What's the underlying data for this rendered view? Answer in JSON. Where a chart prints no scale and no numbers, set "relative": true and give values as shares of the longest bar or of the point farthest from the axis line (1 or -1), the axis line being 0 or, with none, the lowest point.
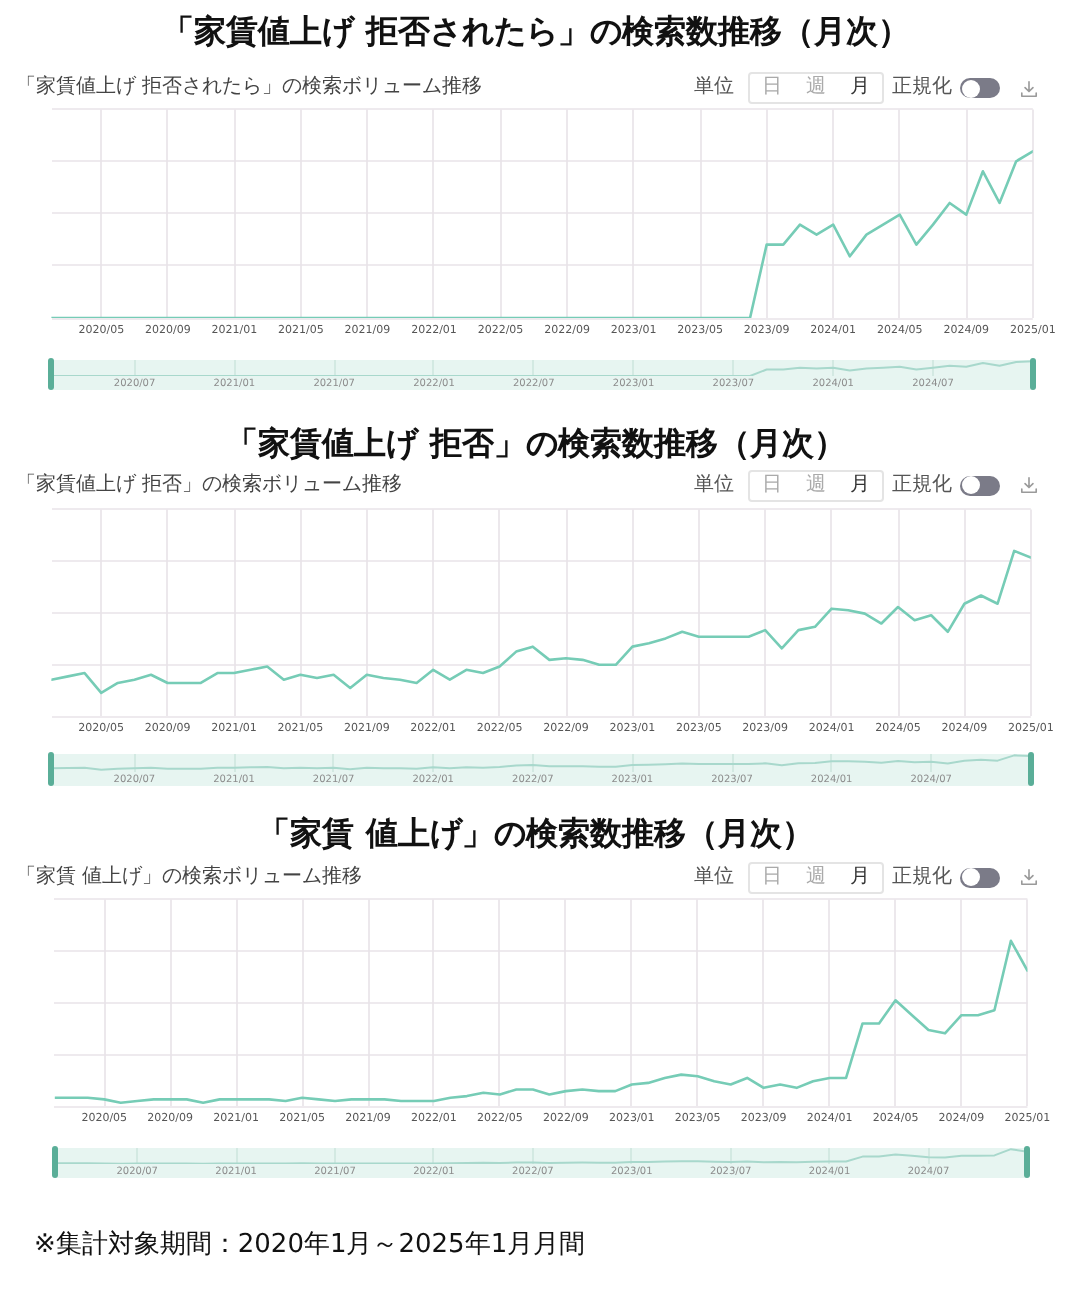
{
  "chart_data": [
    {
      "type": "line",
      "title": "「家賃値上げ 拒否されたら」の検索数推移（月次）",
      "subtitle": "「家賃値上げ 拒否されたら」の検索ボリューム推移",
      "annotations": [
        "単位",
        "日",
        "週",
        "月",
        "正規化"
      ],
      "x": [
        "2020-02",
        "2020-03",
        "2020-04",
        "2020-05",
        "2020-06",
        "2020-07",
        "2020-08",
        "2020-09",
        "2020-10",
        "2020-11",
        "2020-12",
        "2021-01",
        "2021-02",
        "2021-03",
        "2021-04",
        "2021-05",
        "2021-06",
        "2021-07",
        "2021-08",
        "2021-09",
        "2021-10",
        "2021-11",
        "2021-12",
        "2022-01",
        "2022-02",
        "2022-03",
        "2022-04",
        "2022-05",
        "2022-06",
        "2022-07",
        "2022-08",
        "2022-09",
        "2022-10",
        "2022-11",
        "2022-12",
        "2023-01",
        "2023-02",
        "2023-03",
        "2023-04",
        "2023-05",
        "2023-06",
        "2023-07",
        "2023-08",
        "2023-09",
        "2023-10",
        "2023-11",
        "2023-12",
        "2024-01",
        "2024-02",
        "2024-03",
        "2024-04",
        "2024-05",
        "2024-06",
        "2024-07",
        "2024-08",
        "2024-09",
        "2024-10",
        "2024-11",
        "2024-12",
        "2025-01"
      ],
      "values": [
        0,
        0,
        0,
        0,
        0,
        0,
        0,
        0,
        0,
        0,
        0,
        0,
        0,
        0,
        0,
        0,
        0,
        0,
        0,
        0,
        0,
        0,
        0,
        0,
        0,
        0,
        0,
        0,
        0,
        0,
        0,
        0,
        0,
        0,
        0,
        0,
        0,
        0,
        0,
        0,
        0,
        0,
        0,
        0.44,
        0.44,
        0.56,
        0.5,
        0.56,
        0.37,
        0.5,
        0.56,
        0.62,
        0.44,
        0.56,
        0.69,
        0.62,
        0.88,
        0.69,
        0.94,
        1.0
      ],
      "color": "#76ccb6",
      "marker": "none",
      "grid": true,
      "relative": true,
      "tick_labels": "x",
      "xlim": [
        "2020-02",
        "2025-01"
      ],
      "xticks": [
        {
          "value": "2020-05",
          "label": "2020/05"
        },
        {
          "value": "2020-09",
          "label": "2020/09"
        },
        {
          "value": "2021-01",
          "label": "2021/01"
        },
        {
          "value": "2021-05",
          "label": "2021/05"
        },
        {
          "value": "2021-09",
          "label": "2021/09"
        },
        {
          "value": "2022-01",
          "label": "2022/01"
        },
        {
          "value": "2022-05",
          "label": "2022/05"
        },
        {
          "value": "2022-09",
          "label": "2022/09"
        },
        {
          "value": "2023-01",
          "label": "2023/01"
        },
        {
          "value": "2023-05",
          "label": "2023/05"
        },
        {
          "value": "2023-09",
          "label": "2023/09"
        },
        {
          "value": "2024-01",
          "label": "2024/01"
        },
        {
          "value": "2024-05",
          "label": "2024/05"
        },
        {
          "value": "2024-09",
          "label": "2024/09"
        },
        {
          "value": "2025-01",
          "label": "2025/01"
        }
      ]
    },
    {
      "type": "line",
      "x": [
        "2020-02",
        "2020-03",
        "2020-04",
        "2020-05",
        "2020-06",
        "2020-07",
        "2020-08",
        "2020-09",
        "2020-10",
        "2020-11",
        "2020-12",
        "2021-01",
        "2021-02",
        "2021-03",
        "2021-04",
        "2021-05",
        "2021-06",
        "2021-07",
        "2021-08",
        "2021-09",
        "2021-10",
        "2021-11",
        "2021-12",
        "2022-01",
        "2022-02",
        "2022-03",
        "2022-04",
        "2022-05",
        "2022-06",
        "2022-07",
        "2022-08",
        "2022-09",
        "2022-10",
        "2022-11",
        "2022-12",
        "2023-01",
        "2023-02",
        "2023-03",
        "2023-04",
        "2023-05",
        "2023-06",
        "2023-07",
        "2023-08",
        "2023-09",
        "2023-10",
        "2023-11",
        "2023-12",
        "2024-01",
        "2024-02",
        "2024-03",
        "2024-04",
        "2024-05",
        "2024-06",
        "2024-07",
        "2024-08",
        "2024-09",
        "2024-10",
        "2024-11",
        "2024-12",
        "2025-01"
      ],
      "values": [
        0,
        0,
        0,
        0,
        0,
        0,
        0,
        0,
        0,
        0,
        0,
        0,
        0,
        0,
        0,
        0,
        0,
        0,
        0,
        0,
        0,
        0,
        0,
        0,
        0,
        0,
        0,
        0,
        0,
        0,
        0,
        0,
        0,
        0,
        0,
        0,
        0,
        0,
        0,
        0,
        0,
        0,
        0,
        0.44,
        0.44,
        0.56,
        0.5,
        0.56,
        0.37,
        0.5,
        0.56,
        0.62,
        0.44,
        0.56,
        0.69,
        0.62,
        0.88,
        0.69,
        0.94,
        1.0
      ],
      "color": "#a8d8cc",
      "marker": "none",
      "grid": "x",
      "relative": true,
      "tick_labels": "x",
      "xlim": [
        "2020-02",
        "2025-01"
      ],
      "xticks": [
        {
          "value": "2020-07",
          "label": "2020/07"
        },
        {
          "value": "2021-01",
          "label": "2021/01"
        },
        {
          "value": "2021-07",
          "label": "2021/07"
        },
        {
          "value": "2022-01",
          "label": "2022/01"
        },
        {
          "value": "2022-07",
          "label": "2022/07"
        },
        {
          "value": "2023-01",
          "label": "2023/01"
        },
        {
          "value": "2023-07",
          "label": "2023/07"
        },
        {
          "value": "2024-01",
          "label": "2024/01"
        },
        {
          "value": "2024-07",
          "label": "2024/07"
        }
      ],
      "bands": [
        {
          "axis": "x",
          "from": "2020-02",
          "to": "2025-01",
          "color": "#e7f5f1"
        }
      ]
    },
    {
      "type": "line",
      "title": "「家賃値上げ 拒否」の検索数推移（月次）",
      "subtitle": "「家賃値上げ 拒否」の検索ボリューム推移",
      "annotations": [
        "単位",
        "日",
        "週",
        "月",
        "正規化"
      ],
      "x": [
        "2020-02",
        "2020-03",
        "2020-04",
        "2020-05",
        "2020-06",
        "2020-07",
        "2020-08",
        "2020-09",
        "2020-10",
        "2020-11",
        "2020-12",
        "2021-01",
        "2021-02",
        "2021-03",
        "2021-04",
        "2021-05",
        "2021-06",
        "2021-07",
        "2021-08",
        "2021-09",
        "2021-10",
        "2021-11",
        "2021-12",
        "2022-01",
        "2022-02",
        "2022-03",
        "2022-04",
        "2022-05",
        "2022-06",
        "2022-07",
        "2022-08",
        "2022-09",
        "2022-10",
        "2022-11",
        "2022-12",
        "2023-01",
        "2023-02",
        "2023-03",
        "2023-04",
        "2023-05",
        "2023-06",
        "2023-07",
        "2023-08",
        "2023-09",
        "2023-10",
        "2023-11",
        "2023-12",
        "2024-01",
        "2024-02",
        "2024-03",
        "2024-04",
        "2024-05",
        "2024-06",
        "2024-07",
        "2024-08",
        "2024-09",
        "2024-10",
        "2024-11",
        "2024-12",
        "2025-01"
      ],
      "values": [
        0.22,
        0.24,
        0.26,
        0.14,
        0.2,
        0.22,
        0.25,
        0.2,
        0.2,
        0.2,
        0.26,
        0.26,
        0.28,
        0.3,
        0.22,
        0.25,
        0.23,
        0.25,
        0.17,
        0.25,
        0.23,
        0.22,
        0.2,
        0.28,
        0.22,
        0.28,
        0.26,
        0.3,
        0.39,
        0.42,
        0.34,
        0.35,
        0.34,
        0.31,
        0.31,
        0.42,
        0.44,
        0.47,
        0.51,
        0.48,
        0.48,
        0.48,
        0.48,
        0.52,
        0.41,
        0.52,
        0.54,
        0.65,
        0.64,
        0.62,
        0.56,
        0.66,
        0.58,
        0.61,
        0.51,
        0.68,
        0.73,
        0.68,
        1.0,
        0.96
      ],
      "color": "#76ccb6",
      "marker": "none",
      "grid": true,
      "relative": true,
      "tick_labels": "x",
      "xlim": [
        "2020-02",
        "2025-01"
      ],
      "xticks": [
        {
          "value": "2020-05",
          "label": "2020/05"
        },
        {
          "value": "2020-09",
          "label": "2020/09"
        },
        {
          "value": "2021-01",
          "label": "2021/01"
        },
        {
          "value": "2021-05",
          "label": "2021/05"
        },
        {
          "value": "2021-09",
          "label": "2021/09"
        },
        {
          "value": "2022-01",
          "label": "2022/01"
        },
        {
          "value": "2022-05",
          "label": "2022/05"
        },
        {
          "value": "2022-09",
          "label": "2022/09"
        },
        {
          "value": "2023-01",
          "label": "2023/01"
        },
        {
          "value": "2023-05",
          "label": "2023/05"
        },
        {
          "value": "2023-09",
          "label": "2023/09"
        },
        {
          "value": "2024-01",
          "label": "2024/01"
        },
        {
          "value": "2024-05",
          "label": "2024/05"
        },
        {
          "value": "2024-09",
          "label": "2024/09"
        },
        {
          "value": "2025-01",
          "label": "2025/01"
        }
      ]
    },
    {
      "type": "line",
      "x": [
        "2020-02",
        "2020-03",
        "2020-04",
        "2020-05",
        "2020-06",
        "2020-07",
        "2020-08",
        "2020-09",
        "2020-10",
        "2020-11",
        "2020-12",
        "2021-01",
        "2021-02",
        "2021-03",
        "2021-04",
        "2021-05",
        "2021-06",
        "2021-07",
        "2021-08",
        "2021-09",
        "2021-10",
        "2021-11",
        "2021-12",
        "2022-01",
        "2022-02",
        "2022-03",
        "2022-04",
        "2022-05",
        "2022-06",
        "2022-07",
        "2022-08",
        "2022-09",
        "2022-10",
        "2022-11",
        "2022-12",
        "2023-01",
        "2023-02",
        "2023-03",
        "2023-04",
        "2023-05",
        "2023-06",
        "2023-07",
        "2023-08",
        "2023-09",
        "2023-10",
        "2023-11",
        "2023-12",
        "2024-01",
        "2024-02",
        "2024-03",
        "2024-04",
        "2024-05",
        "2024-06",
        "2024-07",
        "2024-08",
        "2024-09",
        "2024-10",
        "2024-11",
        "2024-12",
        "2025-01"
      ],
      "values": [
        0.22,
        0.24,
        0.26,
        0.14,
        0.2,
        0.22,
        0.25,
        0.2,
        0.2,
        0.2,
        0.26,
        0.26,
        0.28,
        0.3,
        0.22,
        0.25,
        0.23,
        0.25,
        0.17,
        0.25,
        0.23,
        0.22,
        0.2,
        0.28,
        0.22,
        0.28,
        0.26,
        0.3,
        0.39,
        0.42,
        0.34,
        0.35,
        0.34,
        0.31,
        0.31,
        0.42,
        0.44,
        0.47,
        0.51,
        0.48,
        0.48,
        0.48,
        0.48,
        0.52,
        0.41,
        0.52,
        0.54,
        0.65,
        0.64,
        0.62,
        0.56,
        0.66,
        0.58,
        0.61,
        0.51,
        0.68,
        0.73,
        0.68,
        1.0,
        0.96
      ],
      "color": "#a8d8cc",
      "marker": "none",
      "grid": "x",
      "relative": true,
      "tick_labels": "x",
      "xlim": [
        "2020-02",
        "2025-01"
      ],
      "xticks": [
        {
          "value": "2020-07",
          "label": "2020/07"
        },
        {
          "value": "2021-01",
          "label": "2021/01"
        },
        {
          "value": "2021-07",
          "label": "2021/07"
        },
        {
          "value": "2022-01",
          "label": "2022/01"
        },
        {
          "value": "2022-07",
          "label": "2022/07"
        },
        {
          "value": "2023-01",
          "label": "2023/01"
        },
        {
          "value": "2023-07",
          "label": "2023/07"
        },
        {
          "value": "2024-01",
          "label": "2024/01"
        },
        {
          "value": "2024-07",
          "label": "2024/07"
        }
      ],
      "bands": [
        {
          "axis": "x",
          "from": "2020-02",
          "to": "2025-01",
          "color": "#e7f5f1"
        }
      ]
    },
    {
      "type": "line",
      "title": "「家賃 値上げ」の検索数推移（月次）",
      "subtitle": "「家賃 値上げ」の検索ボリューム推移",
      "annotations": [
        "単位",
        "日",
        "週",
        "月",
        "正規化"
      ],
      "x": [
        "2020-02",
        "2020-03",
        "2020-04",
        "2020-05",
        "2020-06",
        "2020-07",
        "2020-08",
        "2020-09",
        "2020-10",
        "2020-11",
        "2020-12",
        "2021-01",
        "2021-02",
        "2021-03",
        "2021-04",
        "2021-05",
        "2021-06",
        "2021-07",
        "2021-08",
        "2021-09",
        "2021-10",
        "2021-11",
        "2021-12",
        "2022-01",
        "2022-02",
        "2022-03",
        "2022-04",
        "2022-05",
        "2022-06",
        "2022-07",
        "2022-08",
        "2022-09",
        "2022-10",
        "2022-11",
        "2022-12",
        "2023-01",
        "2023-02",
        "2023-03",
        "2023-04",
        "2023-05",
        "2023-06",
        "2023-07",
        "2023-08",
        "2023-09",
        "2023-10",
        "2023-11",
        "2023-12",
        "2024-01",
        "2024-02",
        "2024-03",
        "2024-04",
        "2024-05",
        "2024-06",
        "2024-07",
        "2024-08",
        "2024-09",
        "2024-10",
        "2024-11",
        "2024-12",
        "2025-01"
      ],
      "values": [
        0.05,
        0.05,
        0.05,
        0.04,
        0.02,
        0.03,
        0.04,
        0.04,
        0.04,
        0.02,
        0.04,
        0.04,
        0.04,
        0.04,
        0.03,
        0.05,
        0.04,
        0.03,
        0.04,
        0.04,
        0.04,
        0.03,
        0.03,
        0.03,
        0.05,
        0.06,
        0.08,
        0.07,
        0.1,
        0.1,
        0.07,
        0.09,
        0.1,
        0.09,
        0.09,
        0.13,
        0.14,
        0.17,
        0.19,
        0.18,
        0.15,
        0.13,
        0.17,
        0.11,
        0.13,
        0.11,
        0.15,
        0.17,
        0.17,
        0.5,
        0.5,
        0.64,
        0.55,
        0.46,
        0.44,
        0.55,
        0.55,
        0.58,
        1.0,
        0.82
      ],
      "color": "#76ccb6",
      "marker": "none",
      "grid": true,
      "relative": true,
      "tick_labels": "x",
      "xlim": [
        "2020-02",
        "2025-01"
      ],
      "xticks": [
        {
          "value": "2020-05",
          "label": "2020/05"
        },
        {
          "value": "2020-09",
          "label": "2020/09"
        },
        {
          "value": "2021-01",
          "label": "2021/01"
        },
        {
          "value": "2021-05",
          "label": "2021/05"
        },
        {
          "value": "2021-09",
          "label": "2021/09"
        },
        {
          "value": "2022-01",
          "label": "2022/01"
        },
        {
          "value": "2022-05",
          "label": "2022/05"
        },
        {
          "value": "2022-09",
          "label": "2022/09"
        },
        {
          "value": "2023-01",
          "label": "2023/01"
        },
        {
          "value": "2023-05",
          "label": "2023/05"
        },
        {
          "value": "2023-09",
          "label": "2023/09"
        },
        {
          "value": "2024-01",
          "label": "2024/01"
        },
        {
          "value": "2024-05",
          "label": "2024/05"
        },
        {
          "value": "2024-09",
          "label": "2024/09"
        },
        {
          "value": "2025-01",
          "label": "2025/01"
        }
      ]
    },
    {
      "type": "line",
      "annotations": [
        "※集計対象期間：2020年1月～2025年1月月間"
      ],
      "x": [
        "2020-02",
        "2020-03",
        "2020-04",
        "2020-05",
        "2020-06",
        "2020-07",
        "2020-08",
        "2020-09",
        "2020-10",
        "2020-11",
        "2020-12",
        "2021-01",
        "2021-02",
        "2021-03",
        "2021-04",
        "2021-05",
        "2021-06",
        "2021-07",
        "2021-08",
        "2021-09",
        "2021-10",
        "2021-11",
        "2021-12",
        "2022-01",
        "2022-02",
        "2022-03",
        "2022-04",
        "2022-05",
        "2022-06",
        "2022-07",
        "2022-08",
        "2022-09",
        "2022-10",
        "2022-11",
        "2022-12",
        "2023-01",
        "2023-02",
        "2023-03",
        "2023-04",
        "2023-05",
        "2023-06",
        "2023-07",
        "2023-08",
        "2023-09",
        "2023-10",
        "2023-11",
        "2023-12",
        "2024-01",
        "2024-02",
        "2024-03",
        "2024-04",
        "2024-05",
        "2024-06",
        "2024-07",
        "2024-08",
        "2024-09",
        "2024-10",
        "2024-11",
        "2024-12",
        "2025-01"
      ],
      "values": [
        0.05,
        0.05,
        0.05,
        0.04,
        0.02,
        0.03,
        0.04,
        0.04,
        0.04,
        0.02,
        0.04,
        0.04,
        0.04,
        0.04,
        0.03,
        0.05,
        0.04,
        0.03,
        0.04,
        0.04,
        0.04,
        0.03,
        0.03,
        0.03,
        0.05,
        0.06,
        0.08,
        0.07,
        0.1,
        0.1,
        0.07,
        0.09,
        0.1,
        0.09,
        0.09,
        0.13,
        0.14,
        0.17,
        0.19,
        0.18,
        0.15,
        0.13,
        0.17,
        0.11,
        0.13,
        0.11,
        0.15,
        0.17,
        0.17,
        0.5,
        0.5,
        0.64,
        0.55,
        0.46,
        0.44,
        0.55,
        0.55,
        0.58,
        1.0,
        0.82
      ],
      "color": "#a8d8cc",
      "marker": "none",
      "grid": "x",
      "relative": true,
      "tick_labels": "x",
      "xlim": [
        "2020-02",
        "2025-01"
      ],
      "xticks": [
        {
          "value": "2020-07",
          "label": "2020/07"
        },
        {
          "value": "2021-01",
          "label": "2021/01"
        },
        {
          "value": "2021-07",
          "label": "2021/07"
        },
        {
          "value": "2022-01",
          "label": "2022/01"
        },
        {
          "value": "2022-07",
          "label": "2022/07"
        },
        {
          "value": "2023-01",
          "label": "2023/01"
        },
        {
          "value": "2023-07",
          "label": "2023/07"
        },
        {
          "value": "2024-01",
          "label": "2024/01"
        },
        {
          "value": "2024-07",
          "label": "2024/07"
        }
      ],
      "bands": [
        {
          "axis": "x",
          "from": "2020-02",
          "to": "2025-01",
          "color": "#e7f5f1"
        }
      ]
    }
  ]
}
